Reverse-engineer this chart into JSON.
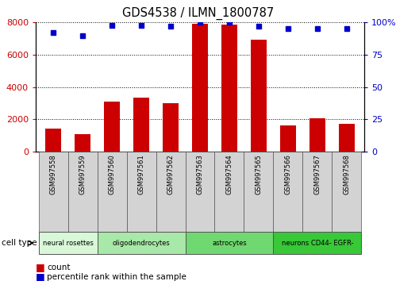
{
  "title": "GDS4538 / ILMN_1800787",
  "samples": [
    "GSM997558",
    "GSM997559",
    "GSM997560",
    "GSM997561",
    "GSM997562",
    "GSM997563",
    "GSM997564",
    "GSM997565",
    "GSM997566",
    "GSM997567",
    "GSM997568"
  ],
  "counts": [
    1450,
    1100,
    3100,
    3350,
    3000,
    7900,
    7850,
    6950,
    1650,
    2050,
    1750
  ],
  "percentiles": [
    92,
    90,
    98,
    98,
    97,
    100,
    100,
    97,
    95,
    95,
    95
  ],
  "cell_types": [
    {
      "label": "neural rosettes",
      "start": 0,
      "end": 2,
      "color": "#d8f8d8"
    },
    {
      "label": "oligodendrocytes",
      "start": 2,
      "end": 5,
      "color": "#a8e8a8"
    },
    {
      "label": "astrocytes",
      "start": 5,
      "end": 8,
      "color": "#70d870"
    },
    {
      "label": "neurons CD44- EGFR-",
      "start": 8,
      "end": 11,
      "color": "#38c838"
    }
  ],
  "bar_color": "#cc0000",
  "dot_color": "#0000cc",
  "ylim_left": [
    0,
    8000
  ],
  "ylim_right": [
    0,
    100
  ],
  "yticks_left": [
    0,
    2000,
    4000,
    6000,
    8000
  ],
  "yticks_right": [
    0,
    25,
    50,
    75,
    100
  ],
  "ytick_right_labels": [
    "0",
    "25",
    "50",
    "75",
    "100%"
  ],
  "bg_color": "#ffffff",
  "tick_label_color_left": "#cc0000",
  "tick_label_color_right": "#0000cc",
  "legend_count_label": "count",
  "legend_pct_label": "percentile rank within the sample",
  "cell_type_label": "cell type",
  "sample_bg_color": "#d3d3d3"
}
